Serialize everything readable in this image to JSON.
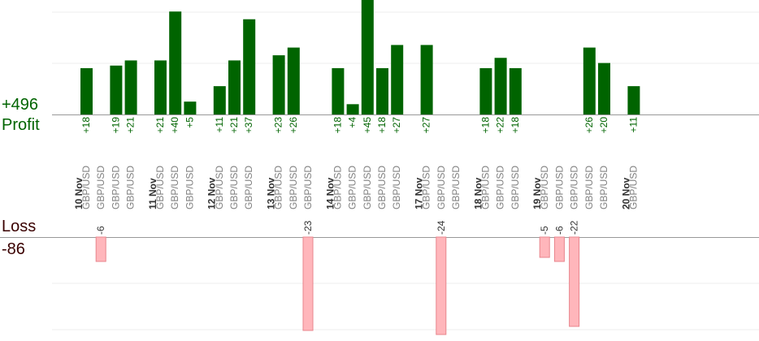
{
  "summary": {
    "profit_total": "+496",
    "profit_label": "Profit",
    "loss_label": "Loss",
    "loss_total": "-86"
  },
  "colors": {
    "profit_bar": "#006400",
    "profit_text": "#006400",
    "loss_bar": "#ffb6bb",
    "loss_bar_border": "#e8858d",
    "loss_text": "#333333",
    "date_text": "#333333",
    "pair_text": "#808080",
    "grid": "#ececec",
    "axis": "#999999"
  },
  "chart_data": {
    "type": "bar",
    "grid": true,
    "groups": [
      {
        "date": "10 Nov",
        "trades": [
          {
            "pair": "GBP/USD",
            "value": 18,
            "label": "+18"
          },
          {
            "pair": "GBP/USD",
            "value": -6,
            "label": "-6"
          },
          {
            "pair": "GBP/USD",
            "value": 19,
            "label": "+19"
          },
          {
            "pair": "GBP/USD",
            "value": 21,
            "label": "+21"
          }
        ]
      },
      {
        "date": "11 Nov",
        "trades": [
          {
            "pair": "GBP/USD",
            "value": 21,
            "label": "+21"
          },
          {
            "pair": "GBP/USD",
            "value": 40,
            "label": "+40"
          },
          {
            "pair": "GBP/USD",
            "value": 5,
            "label": "+5"
          }
        ]
      },
      {
        "date": "12 Nov",
        "trades": [
          {
            "pair": "GBP/USD",
            "value": 11,
            "label": "+11"
          },
          {
            "pair": "GBP/USD",
            "value": 21,
            "label": "+21"
          },
          {
            "pair": "GBP/USD",
            "value": 37,
            "label": "+37"
          }
        ]
      },
      {
        "date": "13 Nov",
        "trades": [
          {
            "pair": "GBP/USD",
            "value": 23,
            "label": "+23"
          },
          {
            "pair": "GBP/USD",
            "value": 26,
            "label": "+26"
          },
          {
            "pair": "GBP/USD",
            "value": -23,
            "label": "-23"
          }
        ]
      },
      {
        "date": "14 Nov",
        "trades": [
          {
            "pair": "GBP/USD",
            "value": 18,
            "label": "+18"
          },
          {
            "pair": "GBP/USD",
            "value": 4,
            "label": "+4"
          },
          {
            "pair": "GBP/USD",
            "value": 45,
            "label": "+45"
          },
          {
            "pair": "GBP/USD",
            "value": 18,
            "label": "+18"
          },
          {
            "pair": "GBP/USD",
            "value": 27,
            "label": "+27"
          }
        ]
      },
      {
        "date": "17 Nov",
        "trades": [
          {
            "pair": "GBP/USD",
            "value": 27,
            "label": "+27"
          },
          {
            "pair": "GBP/USD",
            "value": -24,
            "label": "-24"
          },
          {
            "pair": "GBP/USD",
            "value": 0,
            "label": ""
          }
        ]
      },
      {
        "date": "18 Nov",
        "trades": [
          {
            "pair": "GBP/USD",
            "value": 18,
            "label": "+18"
          },
          {
            "pair": "GBP/USD",
            "value": 22,
            "label": "+22"
          },
          {
            "pair": "GBP/USD",
            "value": 18,
            "label": "+18"
          }
        ]
      },
      {
        "date": "19 Nov",
        "trades": [
          {
            "pair": "GBP/USD",
            "value": -5,
            "label": "-5"
          },
          {
            "pair": "GBP/USD",
            "value": -6,
            "label": "-6"
          },
          {
            "pair": "GBP/USD",
            "value": -22,
            "label": "-22"
          },
          {
            "pair": "GBP/USD",
            "value": 26,
            "label": "+26"
          },
          {
            "pair": "GBP/USD",
            "value": 20,
            "label": "+20"
          }
        ]
      },
      {
        "date": "20 Nov",
        "trades": [
          {
            "pair": "GBP/USD",
            "value": 11,
            "label": "+11"
          }
        ]
      }
    ]
  }
}
